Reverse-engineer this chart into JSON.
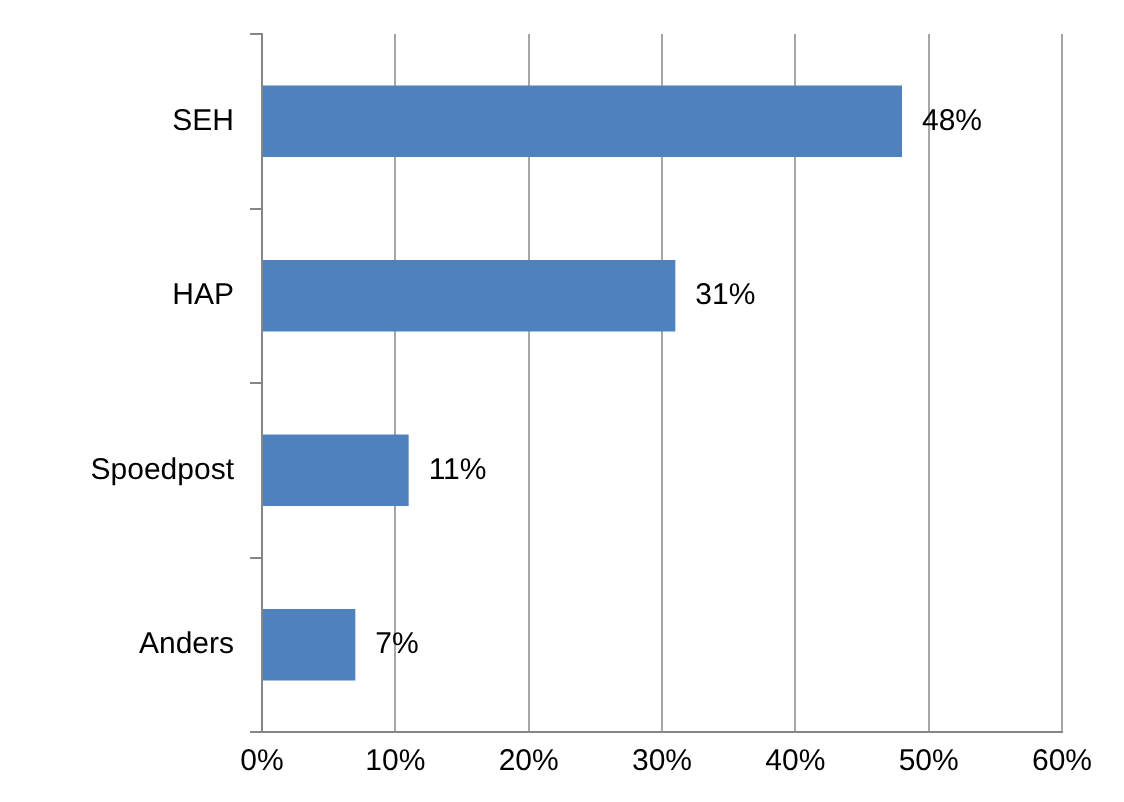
{
  "chart_data": {
    "type": "bar",
    "orientation": "horizontal",
    "categories": [
      "SEH",
      "HAP",
      "Spoedpost",
      "Anders"
    ],
    "values": [
      48,
      31,
      11,
      7
    ],
    "value_labels": [
      "48%",
      "31%",
      "11%",
      "7%"
    ],
    "color": "#4f81bd",
    "xlim": [
      0,
      60
    ],
    "xticks": [
      {
        "value": 0,
        "label": "0%"
      },
      {
        "value": 10,
        "label": "10%"
      },
      {
        "value": 20,
        "label": "20%"
      },
      {
        "value": 30,
        "label": "30%"
      },
      {
        "value": 40,
        "label": "40%"
      },
      {
        "value": 50,
        "label": "50%"
      },
      {
        "value": 60,
        "label": "60%"
      }
    ],
    "grid": "x"
  }
}
